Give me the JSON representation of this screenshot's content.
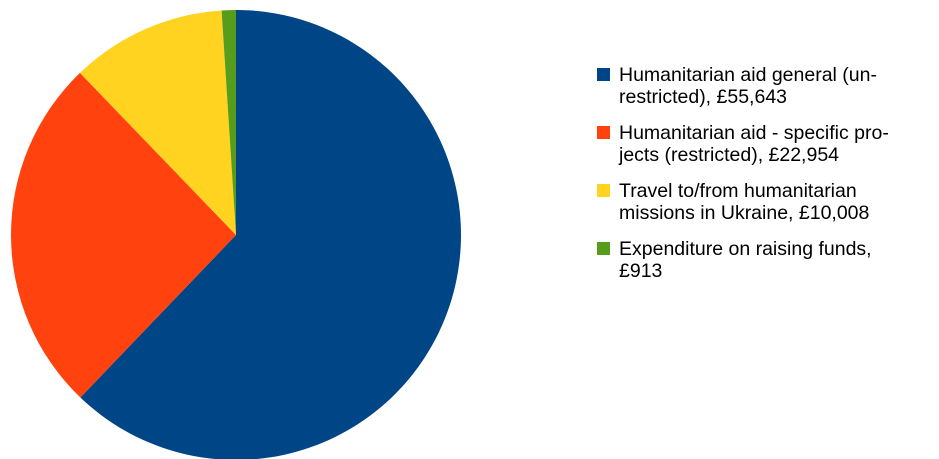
{
  "chart_data": {
    "type": "pie",
    "title": "",
    "start_angle_deg": 0,
    "direction": "clockwise",
    "legend_position": "right",
    "slices": [
      {
        "label_lines": [
          "Humanitarian aid general (un-",
          "restricted), £55,643"
        ],
        "value": 55643,
        "color": "#004586"
      },
      {
        "label_lines": [
          "Humanitarian aid - specific pro-",
          "jects (restricted), £22,954"
        ],
        "value": 22954,
        "color": "#ff420e"
      },
      {
        "label_lines": [
          "Travel to/from humanitarian",
          "missions in Ukraine, £10,008"
        ],
        "value": 10008,
        "color": "#ffd320"
      },
      {
        "label_lines": [
          "Expenditure on raising funds,",
          "£913"
        ],
        "value": 913,
        "color": "#579d1c"
      }
    ]
  }
}
